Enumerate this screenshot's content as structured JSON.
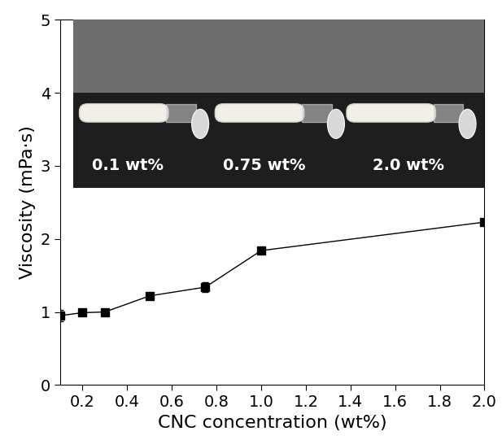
{
  "chart_data": {
    "type": "line",
    "x_label": "CNC concentration (wt%)",
    "y_label": "Viscosity (mPa·s)",
    "x": [
      0.1,
      0.2,
      0.3,
      0.5,
      0.75,
      1.0,
      2.0
    ],
    "values": [
      0.95,
      0.99,
      1.0,
      1.22,
      1.34,
      1.84,
      2.23
    ],
    "errors": [
      0.08,
      0.02,
      0.02,
      0.03,
      0.07,
      0.02,
      0.02
    ],
    "color": "#000000",
    "marker": "square",
    "line_style": "solid",
    "xlim": [
      0.1,
      2.0
    ],
    "xticks": [
      0.2,
      0.4,
      0.6,
      0.8,
      {
        "value": 1.0,
        "label": "1.0"
      },
      1.2,
      1.4,
      1.6,
      1.8,
      {
        "value": 2.0,
        "label": "2.0"
      }
    ],
    "ylim": [
      0,
      5
    ],
    "yticks": [
      0,
      1,
      2,
      3,
      4,
      5
    ],
    "grid": false,
    "annotations": [
      "0.1 wt%",
      "0.75 wt%",
      "2.0 wt%"
    ]
  }
}
